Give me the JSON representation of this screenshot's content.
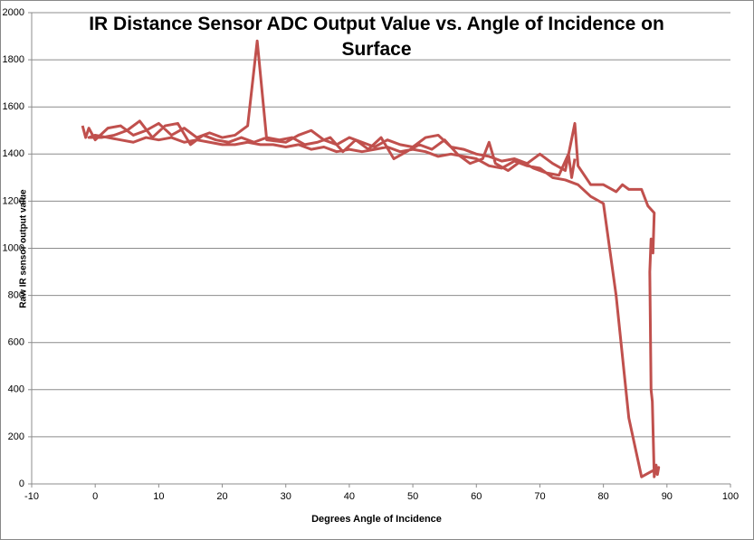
{
  "chart_data": {
    "type": "line",
    "title": "IR Distance Sensor ADC Output Value vs. Angle of Incidence on Surface",
    "xlabel": "Degrees Angle of Incidence",
    "ylabel": "Raw IR sensor output value",
    "xlim": [
      -10,
      100
    ],
    "xticks": [
      -10,
      0,
      10,
      20,
      30,
      40,
      50,
      60,
      70,
      80,
      90,
      100
    ],
    "ylim": [
      0,
      2000
    ],
    "yticks": [
      0,
      200,
      400,
      600,
      800,
      1000,
      1200,
      1400,
      1600,
      1800,
      2000
    ],
    "grid": true,
    "series": [
      {
        "name": "",
        "color": "#c0504d",
        "x": [
          -2,
          -1.5,
          -1,
          0,
          2,
          4,
          6,
          8,
          10,
          12,
          14,
          16,
          18,
          20,
          22,
          24,
          25.5,
          27,
          30,
          32,
          34,
          36,
          38,
          40,
          42,
          44,
          46,
          48,
          50,
          52,
          54,
          56,
          58,
          60,
          62,
          64,
          66,
          68,
          70,
          72,
          74,
          75.5,
          76,
          78,
          80,
          82,
          83,
          84,
          86,
          87,
          88,
          87.8,
          87.5,
          87.3,
          87.5,
          87.7,
          88,
          88.3,
          88.5,
          88.7,
          86,
          84,
          82,
          80,
          78,
          76,
          74,
          72,
          70,
          68,
          66,
          64,
          62,
          60,
          58,
          56,
          54,
          52,
          50,
          48,
          46,
          44,
          42,
          40,
          38,
          36,
          34,
          32,
          30,
          28,
          26,
          24,
          22,
          20,
          18,
          16,
          14,
          12,
          10,
          8,
          6,
          4,
          2,
          0,
          -1,
          1,
          3,
          5,
          7,
          9,
          11,
          13,
          15,
          17,
          19,
          21,
          23,
          25,
          27,
          29,
          31,
          33,
          35,
          37,
          39,
          41,
          43,
          45,
          47,
          49,
          51,
          53,
          55,
          57,
          59,
          61,
          62,
          63,
          65,
          67,
          69,
          71,
          73,
          74.5,
          75,
          75.5
        ],
        "values": [
          1520,
          1470,
          1510,
          1460,
          1510,
          1520,
          1480,
          1500,
          1530,
          1480,
          1510,
          1470,
          1490,
          1470,
          1480,
          1520,
          1880,
          1460,
          1450,
          1480,
          1500,
          1460,
          1440,
          1470,
          1450,
          1430,
          1460,
          1440,
          1430,
          1470,
          1480,
          1430,
          1420,
          1400,
          1390,
          1370,
          1380,
          1360,
          1400,
          1360,
          1330,
          1530,
          1350,
          1270,
          1270,
          1240,
          1270,
          1250,
          1250,
          1180,
          1150,
          980,
          1040,
          900,
          400,
          350,
          30,
          80,
          40,
          70,
          30,
          280,
          800,
          1190,
          1220,
          1270,
          1290,
          1300,
          1340,
          1350,
          1370,
          1340,
          1350,
          1380,
          1390,
          1400,
          1390,
          1410,
          1420,
          1410,
          1430,
          1420,
          1410,
          1420,
          1410,
          1430,
          1420,
          1440,
          1430,
          1440,
          1440,
          1450,
          1440,
          1440,
          1450,
          1460,
          1450,
          1470,
          1460,
          1470,
          1450,
          1460,
          1470,
          1480,
          1470,
          1470,
          1480,
          1500,
          1540,
          1470,
          1520,
          1530,
          1440,
          1480,
          1460,
          1450,
          1470,
          1450,
          1470,
          1460,
          1470,
          1440,
          1450,
          1470,
          1410,
          1460,
          1420,
          1470,
          1380,
          1410,
          1440,
          1420,
          1460,
          1400,
          1360,
          1380,
          1450,
          1360,
          1330,
          1370,
          1340,
          1320,
          1310,
          1400,
          1300,
          1380
        ]
      }
    ]
  }
}
